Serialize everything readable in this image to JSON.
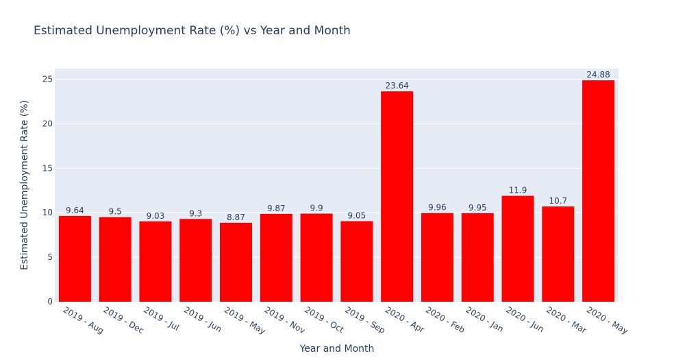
{
  "chart_data": {
    "type": "bar",
    "title": "Estimated Unemployment Rate (%) vs Year and Month",
    "xlabel": "Year and Month",
    "ylabel": "Estimated Unemployment Rate (%)",
    "categories": [
      "2019 - Aug",
      "2019 - Dec",
      "2019 - Jul",
      "2019 - Jun",
      "2019 - May",
      "2019 - Nov",
      "2019 - Oct",
      "2019 - Sep",
      "2020 - Apr",
      "2020 - Feb",
      "2020 - Jan",
      "2020 - Jun",
      "2020 - Mar",
      "2020 - May"
    ],
    "values": [
      9.64,
      9.5,
      9.03,
      9.3,
      8.87,
      9.87,
      9.9,
      9.05,
      23.64,
      9.96,
      9.95,
      11.9,
      10.7,
      24.88
    ],
    "value_labels": [
      "9.64",
      "9.5",
      "9.03",
      "9.3",
      "8.87",
      "9.87",
      "9.9",
      "9.05",
      "23.64",
      "9.96",
      "9.95",
      "11.9",
      "10.7",
      "24.88"
    ],
    "yticks": [
      0,
      5,
      10,
      15,
      20,
      25
    ],
    "ytick_labels": [
      "0",
      "5",
      "10",
      "15",
      "20",
      "25"
    ],
    "ylim": [
      0,
      26.2
    ],
    "grid": true,
    "legend": "none",
    "colors": {
      "bar": "#ff0000",
      "plot_bg": "#e5ecf6",
      "grid": "#ffffff",
      "text": "#2a3f5f"
    }
  }
}
